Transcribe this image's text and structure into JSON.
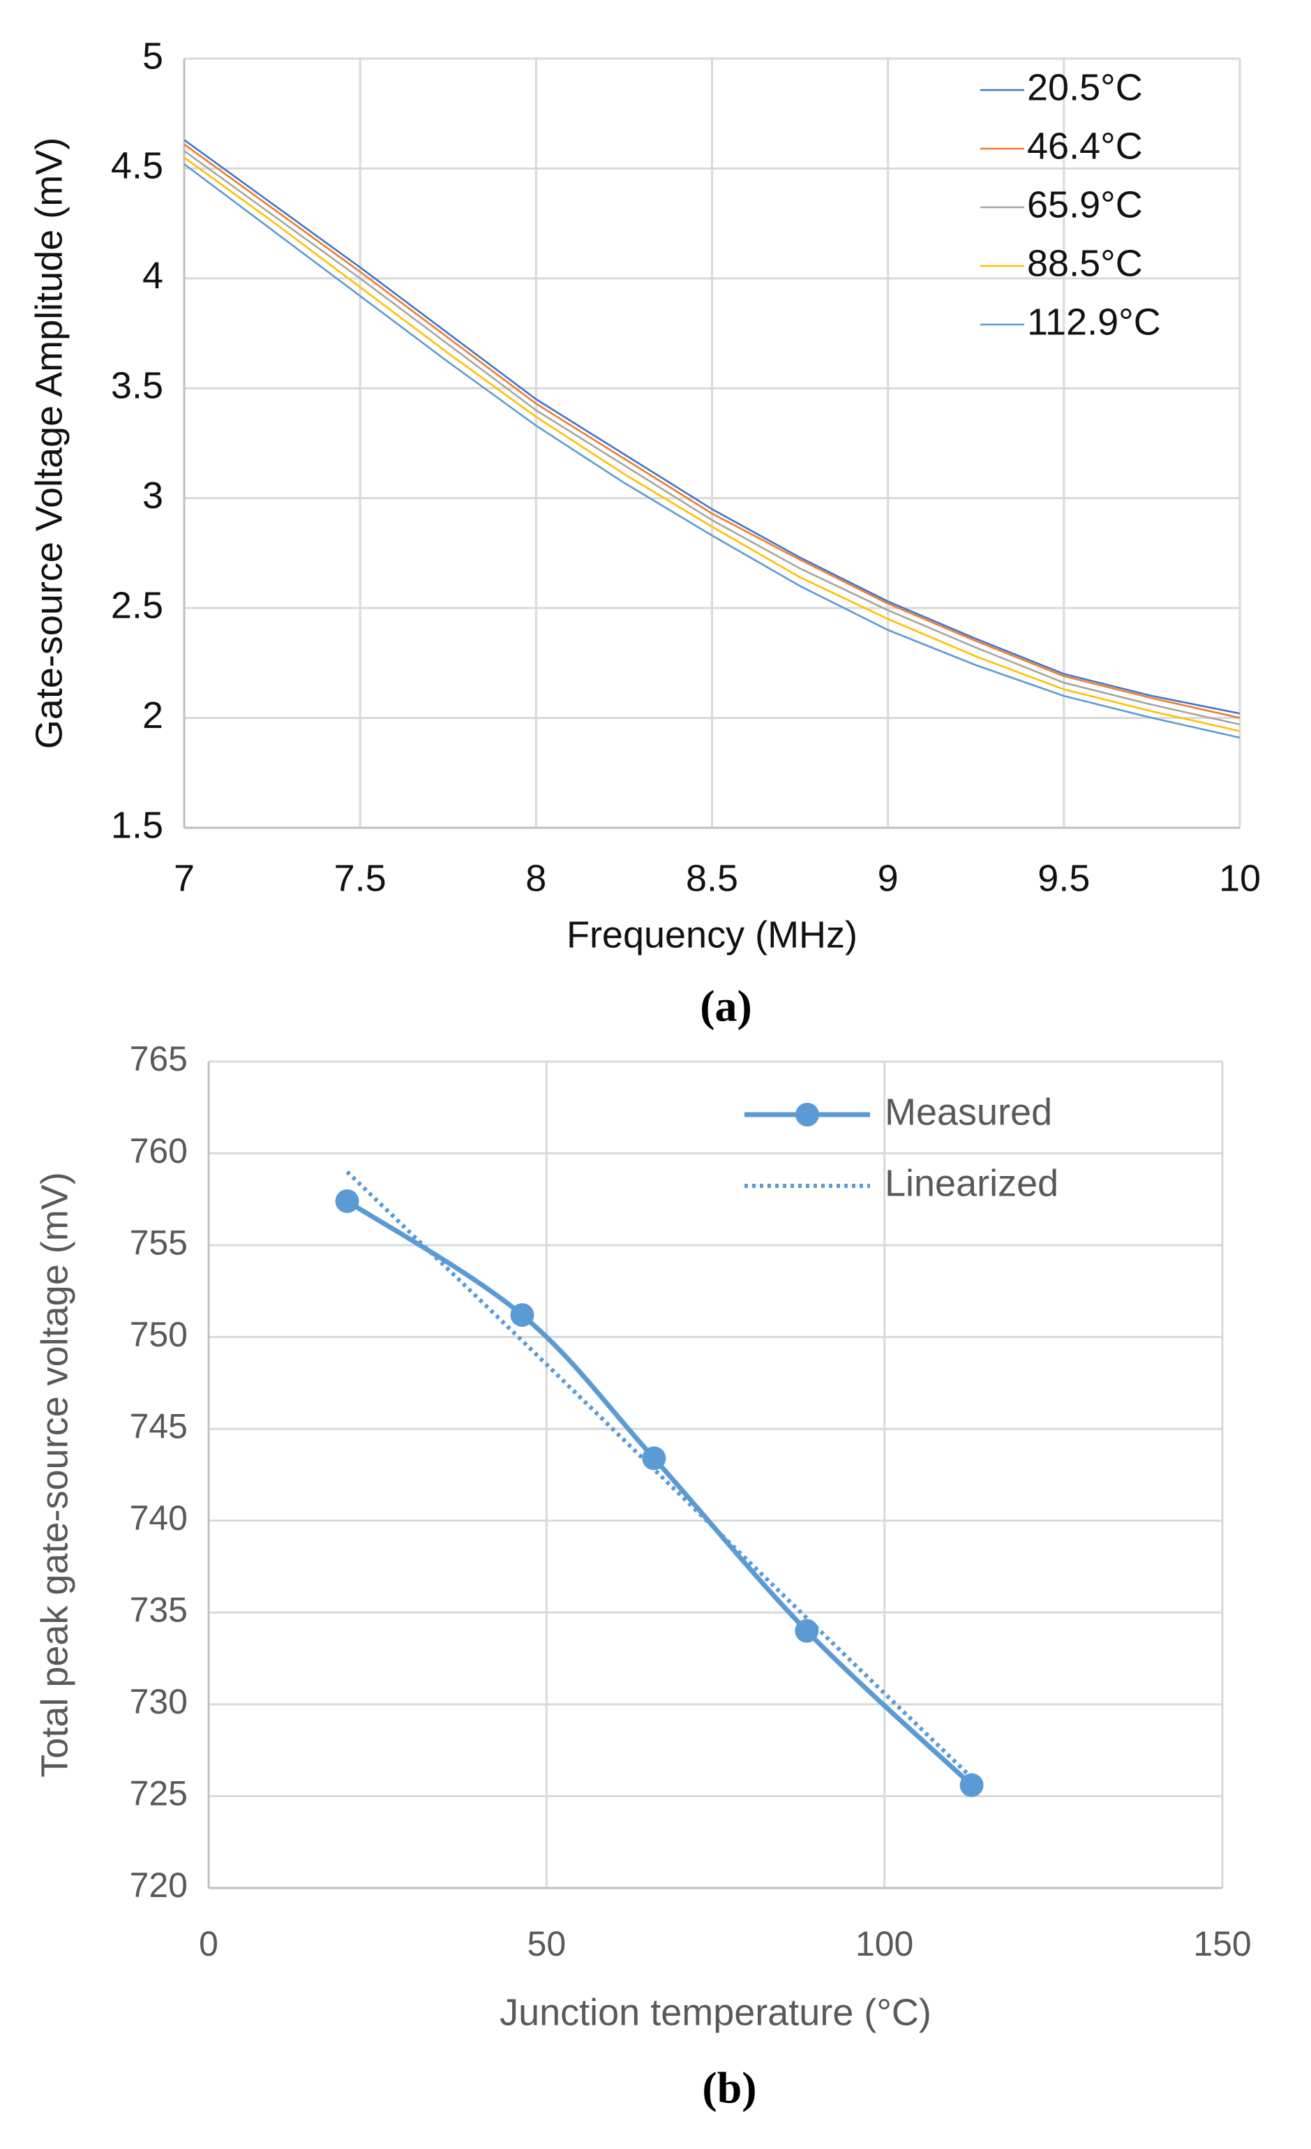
{
  "chart_data": [
    {
      "type": "line",
      "x_label": "Frequency (MHz)",
      "y_label": "Gate-source Voltage Amplitude (mV)",
      "caption": "(a)",
      "x": [
        7,
        7.25,
        7.5,
        7.75,
        8,
        8.25,
        8.5,
        8.75,
        9,
        9.25,
        9.5,
        9.75,
        10
      ],
      "series": [
        {
          "name": "20.5°C",
          "color": "#4472c4",
          "values": [
            4.63,
            4.34,
            4.05,
            3.75,
            3.45,
            3.2,
            2.95,
            2.73,
            2.53,
            2.36,
            2.2,
            2.1,
            2.02
          ]
        },
        {
          "name": "46.4°C",
          "color": "#ed7d31",
          "values": [
            4.61,
            4.32,
            4.03,
            3.73,
            3.43,
            3.18,
            2.93,
            2.72,
            2.52,
            2.35,
            2.19,
            2.09,
            2.0
          ]
        },
        {
          "name": "65.9°C",
          "color": "#a5a5a5",
          "values": [
            4.58,
            4.29,
            4.0,
            3.7,
            3.4,
            3.15,
            2.9,
            2.68,
            2.49,
            2.32,
            2.16,
            2.06,
            1.97
          ]
        },
        {
          "name": "88.5°C",
          "color": "#ffc000",
          "values": [
            4.55,
            4.26,
            3.96,
            3.66,
            3.37,
            3.11,
            2.87,
            2.64,
            2.45,
            2.28,
            2.13,
            2.03,
            1.94
          ]
        },
        {
          "name": "112.9°C",
          "color": "#5b9bd5",
          "values": [
            4.52,
            4.22,
            3.92,
            3.62,
            3.33,
            3.07,
            2.83,
            2.6,
            2.4,
            2.24,
            2.1,
            2.0,
            1.91
          ]
        }
      ],
      "xlim": [
        7,
        10
      ],
      "xticks": [
        7,
        7.5,
        8,
        8.5,
        9,
        9.5,
        10
      ],
      "ylim": [
        1.5,
        5
      ],
      "yticks": [
        1.5,
        2,
        2.5,
        3,
        3.5,
        4,
        4.5,
        5
      ],
      "grid": true,
      "legend": "upper right"
    },
    {
      "type": "line",
      "x_label": "Junction temperature (°C)",
      "y_label": "Total peak gate-source voltage (mV)",
      "caption": "(b)",
      "x": [
        20.5,
        46.4,
        65.9,
        88.5,
        112.9
      ],
      "series": [
        {
          "name": "Measured",
          "color": "#5b9bd5",
          "style": "solid",
          "markers": true,
          "values": [
            757.4,
            751.2,
            743.4,
            734,
            725.6
          ]
        },
        {
          "name": "Linearized",
          "color": "#5b9bd5",
          "style": "dotted",
          "markers": false,
          "values": [
            759,
            749.8,
            742.8,
            734.7,
            726
          ]
        }
      ],
      "xlim": [
        0,
        150
      ],
      "xticks": [
        0,
        50,
        100,
        150
      ],
      "ylim": [
        720,
        765
      ],
      "yticks": [
        720,
        725,
        730,
        735,
        740,
        745,
        750,
        755,
        760,
        765
      ],
      "grid": true,
      "legend": "upper right"
    }
  ]
}
